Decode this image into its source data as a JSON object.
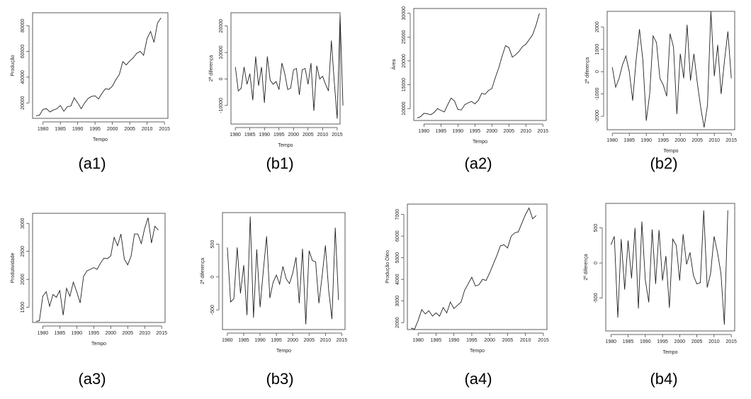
{
  "charts": [
    {
      "id": "a1",
      "panel_label": "(a1)",
      "chart_data": {
        "type": "line",
        "xlabel": "Tempo",
        "ylabel": "Produção",
        "xlim": [
          1977,
          2016
        ],
        "ylim": [
          8000,
          90000
        ],
        "xticks": [
          1980,
          1985,
          1990,
          1995,
          2000,
          2005,
          2010,
          2015
        ],
        "xtick_labels": [
          "1980",
          "1985",
          "1990",
          "1995",
          "2000",
          "2005",
          "2010",
          "2015"
        ],
        "yticks": [
          20000,
          40000,
          60000,
          80000
        ],
        "ytick_labels": [
          "20000",
          "40000",
          "60000",
          "80000"
        ],
        "x_start": 1978,
        "values": [
          10000,
          10500,
          15000,
          15500,
          13000,
          14500,
          15500,
          18000,
          13500,
          17000,
          17500,
          24000,
          20000,
          15500,
          20000,
          23500,
          25000,
          25500,
          23000,
          27500,
          31000,
          30500,
          33000,
          38000,
          42000,
          52000,
          49500,
          52500,
          55000,
          58500,
          60000,
          57000,
          70000,
          75500,
          67000,
          82000,
          86000
        ]
      }
    },
    {
      "id": "b1",
      "panel_label": "(b1)",
      "chart_data": {
        "type": "line",
        "xlabel": "Tempo",
        "ylabel": "2ª diferença",
        "xlim": [
          1978.5,
          2016
        ],
        "ylim": [
          -17000,
          25000
        ],
        "xticks": [
          1980,
          1985,
          1990,
          1995,
          2000,
          2005,
          2010,
          2015
        ],
        "xtick_labels": [
          "1980",
          "1985",
          "1990",
          "1995",
          "2000",
          "2005",
          "2010",
          "2015"
        ],
        "yticks": [
          -10000,
          0,
          10000,
          20000
        ],
        "ytick_labels": [
          "-10000",
          "0",
          "10000",
          "20000"
        ],
        "x_start": 1980,
        "values": [
          4500,
          -4500,
          -3500,
          4500,
          -2000,
          2000,
          -8000,
          8500,
          -2500,
          4500,
          -9000,
          8500,
          -500,
          -2000,
          -1000,
          -4000,
          6000,
          2000,
          -4000,
          -3500,
          3500,
          4000,
          -6000,
          3500,
          4000,
          -2000,
          6000,
          -12000,
          5000,
          0,
          1000,
          -2000,
          -4500,
          14500,
          -1000,
          -15000,
          24000,
          -10000
        ]
      }
    },
    {
      "id": "a2",
      "panel_label": "(a2)",
      "chart_data": {
        "type": "line",
        "xlabel": "Tempo",
        "ylabel": "Área",
        "xlim": [
          1977,
          2016
        ],
        "ylim": [
          7500,
          31000
        ],
        "xticks": [
          1980,
          1985,
          1990,
          1995,
          2000,
          2005,
          2010,
          2015
        ],
        "xtick_labels": [
          "1980",
          "1985",
          "1990",
          "1995",
          "2000",
          "2005",
          "2010",
          "2015"
        ],
        "yticks": [
          10000,
          15000,
          20000,
          25000,
          30000
        ],
        "ytick_labels": [
          "10000",
          "15000",
          "20000",
          "25000",
          "30000"
        ],
        "x_start": 1978,
        "values": [
          8000,
          8300,
          9000,
          8900,
          8700,
          9200,
          10000,
          9600,
          9300,
          10800,
          12200,
          11600,
          9800,
          9700,
          10800,
          11200,
          11500,
          11000,
          11700,
          13200,
          13000,
          13800,
          14200,
          16500,
          18500,
          21000,
          23200,
          22800,
          20800,
          21300,
          22000,
          23000,
          23500,
          24500,
          25500,
          27500,
          30000
        ]
      }
    },
    {
      "id": "b2",
      "panel_label": "(b2)",
      "chart_data": {
        "type": "line",
        "xlabel": "Tempo",
        "ylabel": "2ª diferença",
        "xlim": [
          1978.5,
          2016
        ],
        "ylim": [
          -2600,
          2700
        ],
        "xticks": [
          1980,
          1985,
          1990,
          1995,
          2000,
          2005,
          2010,
          2015
        ],
        "xtick_labels": [
          "1980",
          "1985",
          "1990",
          "1995",
          "2000",
          "2005",
          "2010",
          "2015"
        ],
        "yticks": [
          -2000,
          -1000,
          0,
          1000,
          2000
        ],
        "ytick_labels": [
          "-2000",
          "-1000",
          "0",
          "1000",
          "2000"
        ],
        "x_start": 1980,
        "values": [
          200,
          -700,
          -300,
          300,
          700,
          0,
          -1300,
          500,
          1900,
          500,
          -2200,
          -1000,
          1600,
          1300,
          -300,
          -600,
          -1100,
          1700,
          1100,
          -1900,
          800,
          -300,
          2100,
          -400,
          800,
          -500,
          -1600,
          -2500,
          -1500,
          2700,
          -200,
          1200,
          -1000,
          500,
          1800,
          -300
        ]
      }
    },
    {
      "id": "a3",
      "panel_label": "(a3)",
      "chart_data": {
        "type": "line",
        "xlabel": "Tempo",
        "ylabel": "Produtividade",
        "xlim": [
          1977,
          2016
        ],
        "ylim": [
          1230,
          3180
        ],
        "xticks": [
          1980,
          1985,
          1990,
          1995,
          2000,
          2005,
          2010,
          2015
        ],
        "xtick_labels": [
          "1980",
          "1985",
          "1990",
          "1995",
          "2000",
          "2005",
          "2010",
          "2015"
        ],
        "yticks": [
          1500,
          2000,
          2500,
          3000
        ],
        "ytick_labels": [
          "1500",
          "2000",
          "2500",
          "3000"
        ],
        "x_start": 1978,
        "values": [
          1250,
          1260,
          1700,
          1780,
          1520,
          1730,
          1680,
          1800,
          1360,
          1840,
          1700,
          1950,
          1780,
          1580,
          2050,
          2150,
          2180,
          2210,
          2180,
          2290,
          2380,
          2370,
          2420,
          2750,
          2600,
          2810,
          2360,
          2260,
          2420,
          2810,
          2810,
          2640,
          2910,
          3100,
          2650,
          2950,
          2880
        ]
      }
    },
    {
      "id": "b3",
      "panel_label": "(b3)",
      "chart_data": {
        "type": "line",
        "xlabel": "Tempo",
        "ylabel": "2ª diferença",
        "xlim": [
          1978.5,
          2016
        ],
        "ylim": [
          -800,
          980
        ],
        "xticks": [
          1980,
          1985,
          1990,
          1995,
          2000,
          2005,
          2010,
          2015
        ],
        "xtick_labels": [
          "1980",
          "1985",
          "1990",
          "1995",
          "2000",
          "2005",
          "2010",
          "2015"
        ],
        "yticks": [
          -500,
          0,
          500
        ],
        "ytick_labels": [
          "-500",
          "0",
          "500"
        ],
        "x_start": 1980,
        "values": [
          450,
          -380,
          -330,
          450,
          -250,
          180,
          -580,
          920,
          -620,
          420,
          -460,
          100,
          620,
          -320,
          -80,
          30,
          -110,
          160,
          -30,
          -100,
          60,
          300,
          -400,
          430,
          -720,
          400,
          250,
          230,
          -400,
          20,
          480,
          -200,
          -640,
          750,
          -350
        ]
      }
    },
    {
      "id": "a4",
      "panel_label": "(a4)",
      "chart_data": {
        "type": "line",
        "xlabel": "Tempo",
        "ylabel": "Produção Óleo",
        "xlim": [
          1977,
          2016
        ],
        "ylim": [
          1680,
          7480
        ],
        "xticks": [
          1980,
          1985,
          1990,
          1995,
          2000,
          2005,
          2010,
          2015
        ],
        "xtick_labels": [
          "1980",
          "1985",
          "1990",
          "1995",
          "2000",
          "2005",
          "2010",
          "2015"
        ],
        "yticks": [
          2000,
          3000,
          4000,
          5000,
          6000,
          7000
        ],
        "ytick_labels": [
          "2000",
          "3000",
          "4000",
          "5000",
          "6000",
          "7000"
        ],
        "x_start": 1978,
        "values": [
          1750,
          1700,
          2100,
          2600,
          2400,
          2550,
          2300,
          2450,
          2300,
          2700,
          2450,
          2950,
          2650,
          2800,
          2950,
          3500,
          3800,
          4100,
          3700,
          3750,
          4000,
          3950,
          4300,
          4700,
          5100,
          5550,
          5600,
          5450,
          6000,
          6150,
          6200,
          6600,
          7000,
          7300,
          6800,
          6950
        ]
      }
    },
    {
      "id": "b4",
      "panel_label": "(b4)",
      "chart_data": {
        "type": "line",
        "xlabel": "Tempo",
        "ylabel": "2ª diferença",
        "xlim": [
          1978.5,
          2016
        ],
        "ylim": [
          -970,
          850
        ],
        "xticks": [
          1980,
          1985,
          1990,
          1995,
          2000,
          2005,
          2010,
          2015
        ],
        "xtick_labels": [
          "1980",
          "1985",
          "1990",
          "1995",
          "2000",
          "2005",
          "2010",
          "2015"
        ],
        "yticks": [
          -500,
          0,
          500
        ],
        "ytick_labels": [
          "-500",
          "0",
          "500"
        ],
        "x_start": 1980,
        "values": [
          260,
          380,
          -780,
          340,
          -380,
          320,
          -220,
          500,
          -650,
          590,
          -240,
          -560,
          480,
          -300,
          470,
          -250,
          100,
          -640,
          340,
          250,
          -250,
          410,
          -20,
          150,
          -180,
          -300,
          -280,
          750,
          -350,
          -150,
          380,
          150,
          -150,
          -880,
          750
        ]
      }
    }
  ]
}
